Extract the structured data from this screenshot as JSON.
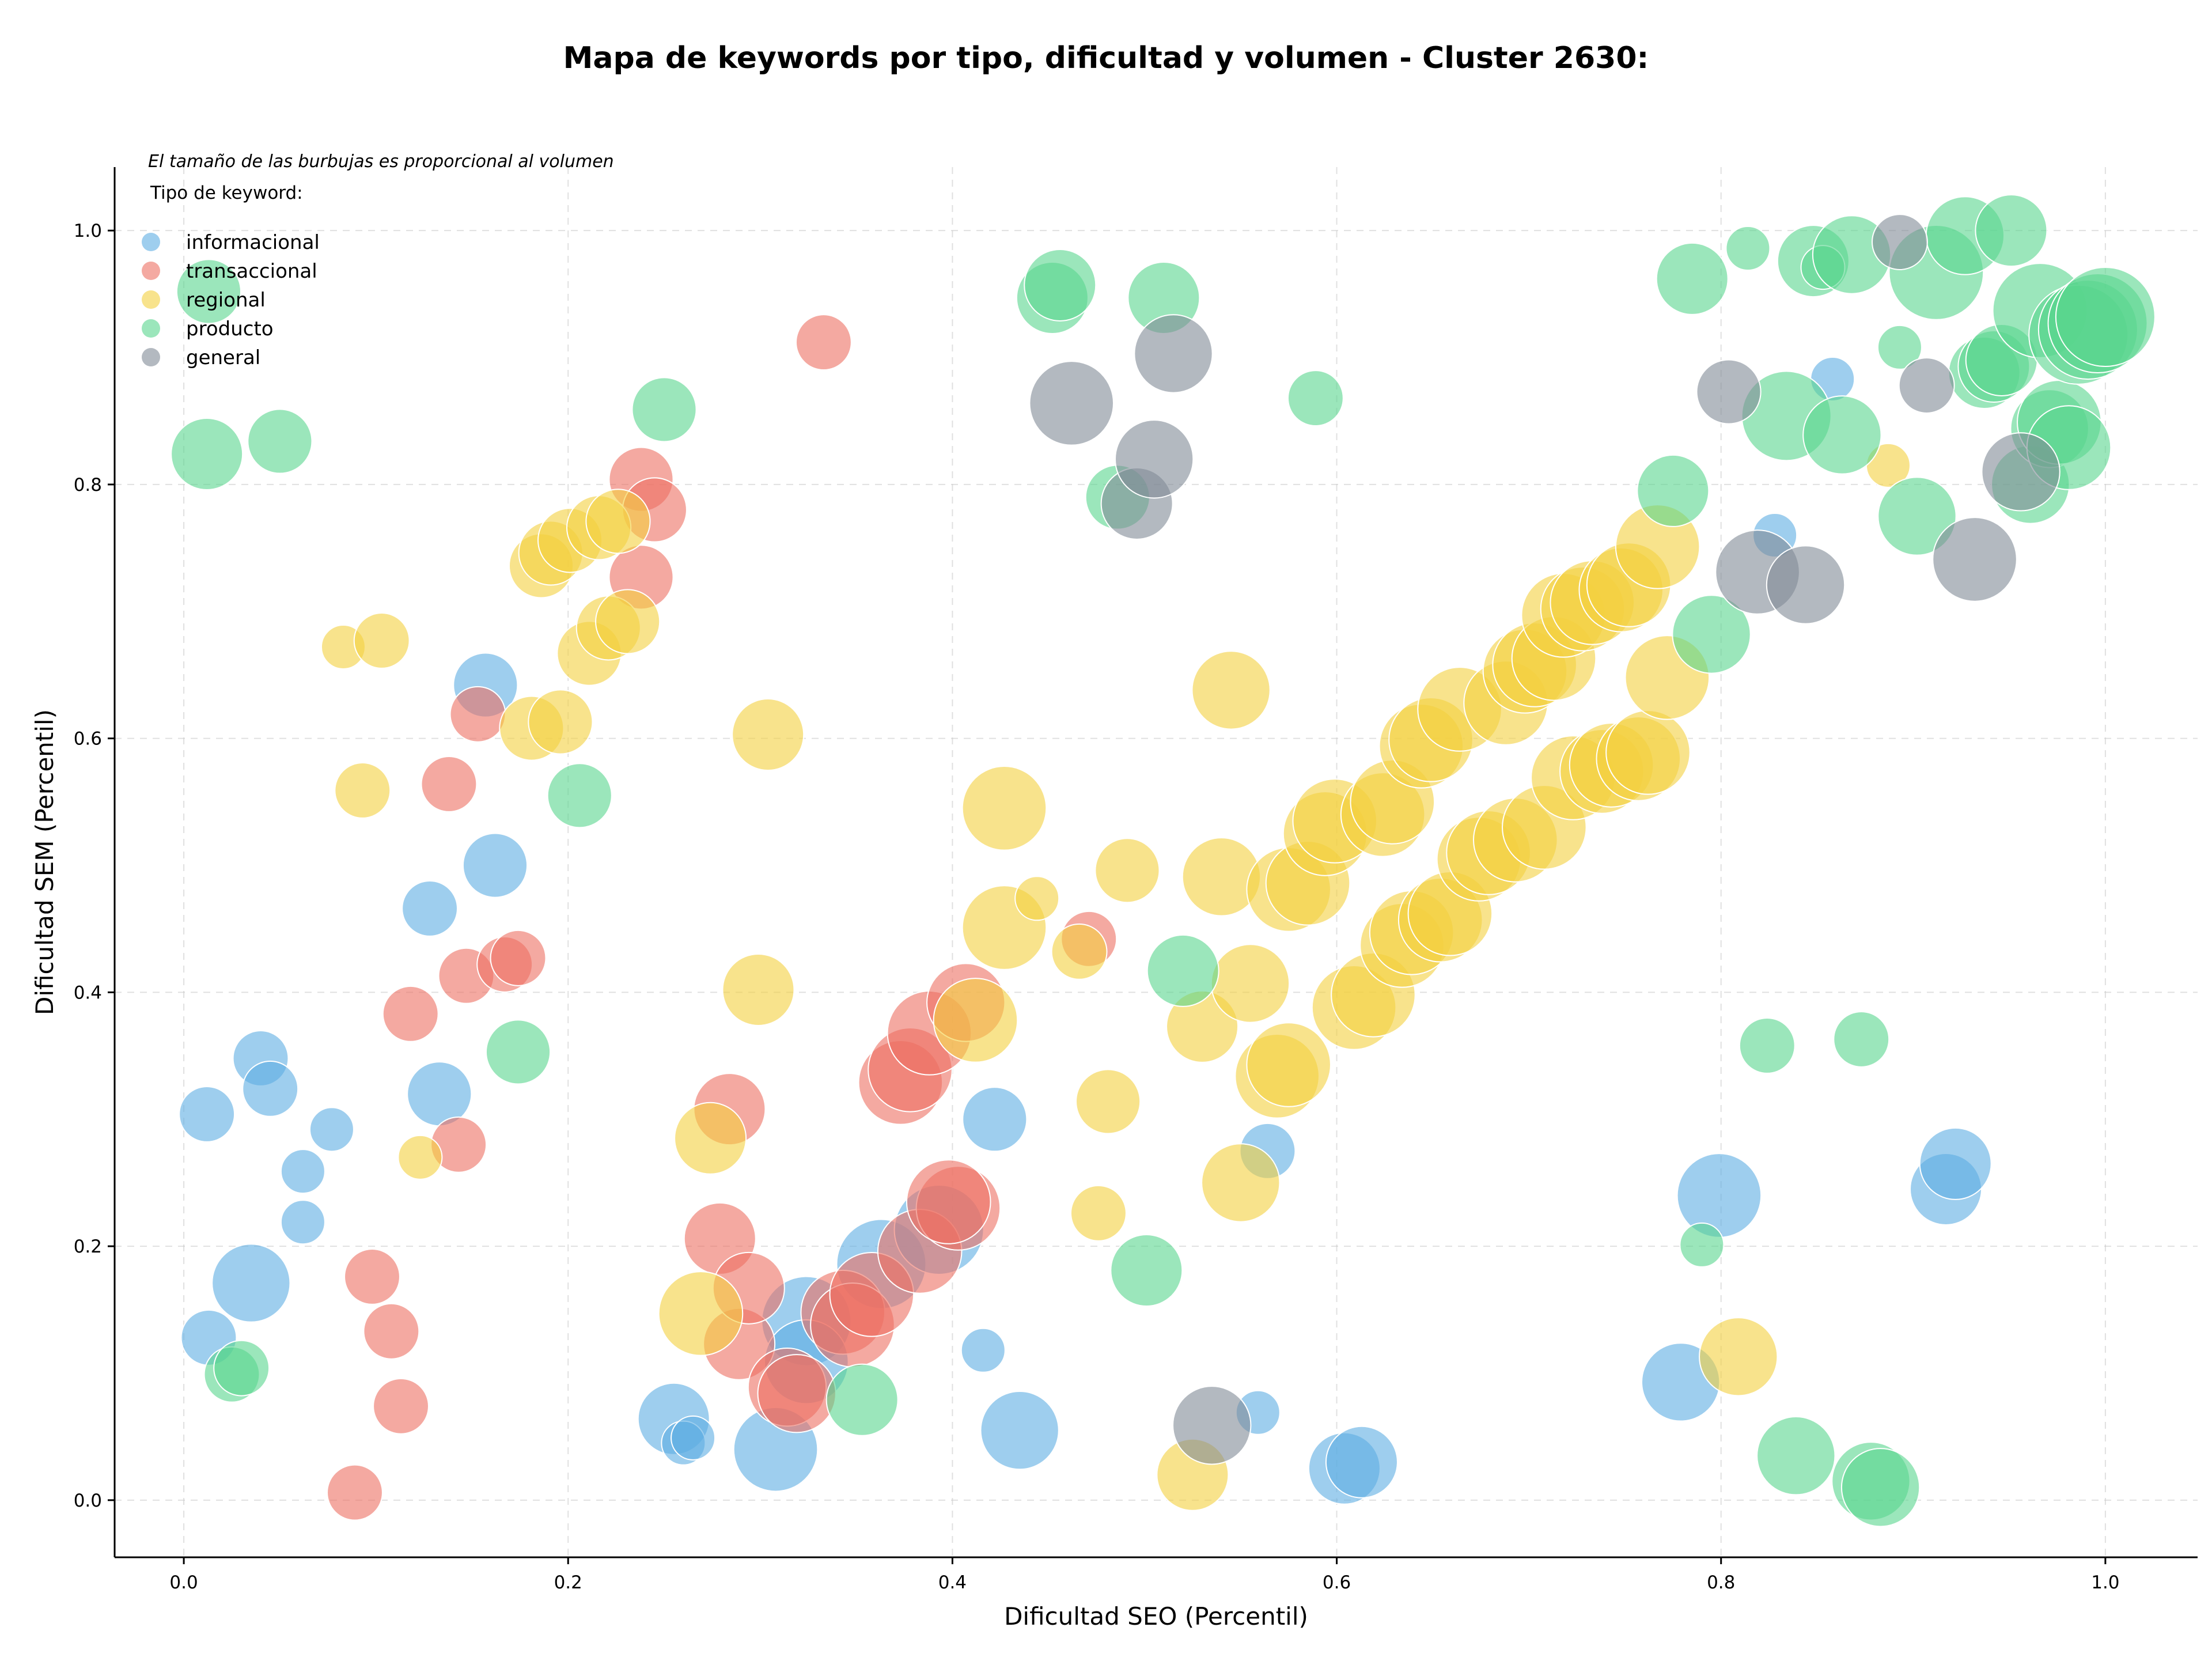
{
  "chart_data": {
    "type": "scatter",
    "title": "Mapa de keywords por tipo, dificultad y volumen - Cluster 2630:",
    "xlabel": "Dificultad SEO (Percentil)",
    "ylabel": "Dificultad SEM (Percentil)",
    "xlim": [
      -0.036,
      1.048
    ],
    "ylim": [
      -0.045,
      1.05
    ],
    "xticks": [
      "0.0",
      "0.2",
      "0.4",
      "0.6",
      "0.8",
      "1.0"
    ],
    "yticks": [
      "0.0",
      "0.2",
      "0.4",
      "0.6",
      "0.8",
      "1.0"
    ],
    "grid": true,
    "note": "El tamaño de las burbujas es proporcional al volumen",
    "legend": {
      "title": "Tipo de keyword:",
      "placement": "top-left"
    },
    "bubble_encoding": "point size ~ search volume (relative, 1-10)",
    "series": [
      {
        "name": "informacional",
        "color": "#5dade2",
        "points": [
          {
            "x": 0.012,
            "y": 0.304,
            "v": 2
          },
          {
            "x": 0.013,
            "y": 0.128,
            "v": 2
          },
          {
            "x": 0.035,
            "y": 0.171,
            "v": 5
          },
          {
            "x": 0.04,
            "y": 0.348,
            "v": 2
          },
          {
            "x": 0.045,
            "y": 0.324,
            "v": 2
          },
          {
            "x": 0.062,
            "y": 0.259,
            "v": 1
          },
          {
            "x": 0.062,
            "y": 0.219,
            "v": 1
          },
          {
            "x": 0.077,
            "y": 0.292,
            "v": 1
          },
          {
            "x": 0.128,
            "y": 0.466,
            "v": 2
          },
          {
            "x": 0.133,
            "y": 0.32,
            "v": 3
          },
          {
            "x": 0.157,
            "y": 0.642,
            "v": 3
          },
          {
            "x": 0.162,
            "y": 0.5,
            "v": 3
          },
          {
            "x": 0.255,
            "y": 0.064,
            "v": 4
          },
          {
            "x": 0.26,
            "y": 0.045,
            "v": 1
          },
          {
            "x": 0.265,
            "y": 0.049,
            "v": 1
          },
          {
            "x": 0.308,
            "y": 0.04,
            "v": 6
          },
          {
            "x": 0.324,
            "y": 0.141,
            "v": 7
          },
          {
            "x": 0.324,
            "y": 0.109,
            "v": 6
          },
          {
            "x": 0.363,
            "y": 0.186,
            "v": 7
          },
          {
            "x": 0.393,
            "y": 0.213,
            "v": 7
          },
          {
            "x": 0.416,
            "y": 0.118,
            "v": 1
          },
          {
            "x": 0.422,
            "y": 0.3,
            "v": 3
          },
          {
            "x": 0.435,
            "y": 0.055,
            "v": 5
          },
          {
            "x": 0.559,
            "y": 0.069,
            "v": 1
          },
          {
            "x": 0.564,
            "y": 0.275,
            "v": 2
          },
          {
            "x": 0.604,
            "y": 0.025,
            "v": 4
          },
          {
            "x": 0.613,
            "y": 0.03,
            "v": 4
          },
          {
            "x": 0.779,
            "y": 0.093,
            "v": 5
          },
          {
            "x": 0.799,
            "y": 0.24,
            "v": 6
          },
          {
            "x": 0.828,
            "y": 0.76,
            "v": 1
          },
          {
            "x": 0.858,
            "y": 0.883,
            "v": 1
          },
          {
            "x": 0.917,
            "y": 0.245,
            "v": 4
          },
          {
            "x": 0.922,
            "y": 0.265,
            "v": 4
          }
        ]
      },
      {
        "name": "transaccional",
        "color": "#ec7063",
        "points": [
          {
            "x": 0.089,
            "y": 0.006,
            "v": 2
          },
          {
            "x": 0.098,
            "y": 0.176,
            "v": 2
          },
          {
            "x": 0.108,
            "y": 0.133,
            "v": 2
          },
          {
            "x": 0.113,
            "y": 0.074,
            "v": 2
          },
          {
            "x": 0.118,
            "y": 0.383,
            "v": 2
          },
          {
            "x": 0.138,
            "y": 0.564,
            "v": 2
          },
          {
            "x": 0.143,
            "y": 0.28,
            "v": 2
          },
          {
            "x": 0.147,
            "y": 0.413,
            "v": 2
          },
          {
            "x": 0.153,
            "y": 0.619,
            "v": 2
          },
          {
            "x": 0.167,
            "y": 0.422,
            "v": 2
          },
          {
            "x": 0.174,
            "y": 0.427,
            "v": 2
          },
          {
            "x": 0.238,
            "y": 0.804,
            "v": 3
          },
          {
            "x": 0.245,
            "y": 0.78,
            "v": 3
          },
          {
            "x": 0.238,
            "y": 0.727,
            "v": 3
          },
          {
            "x": 0.279,
            "y": 0.206,
            "v": 4
          },
          {
            "x": 0.284,
            "y": 0.308,
            "v": 4
          },
          {
            "x": 0.289,
            "y": 0.123,
            "v": 4
          },
          {
            "x": 0.294,
            "y": 0.167,
            "v": 4
          },
          {
            "x": 0.314,
            "y": 0.089,
            "v": 5
          },
          {
            "x": 0.319,
            "y": 0.084,
            "v": 5
          },
          {
            "x": 0.333,
            "y": 0.912,
            "v": 2
          },
          {
            "x": 0.343,
            "y": 0.148,
            "v": 6
          },
          {
            "x": 0.348,
            "y": 0.138,
            "v": 6
          },
          {
            "x": 0.358,
            "y": 0.162,
            "v": 6
          },
          {
            "x": 0.373,
            "y": 0.329,
            "v": 6
          },
          {
            "x": 0.378,
            "y": 0.339,
            "v": 6
          },
          {
            "x": 0.388,
            "y": 0.368,
            "v": 6
          },
          {
            "x": 0.383,
            "y": 0.196,
            "v": 6
          },
          {
            "x": 0.403,
            "y": 0.23,
            "v": 6
          },
          {
            "x": 0.398,
            "y": 0.235,
            "v": 6
          },
          {
            "x": 0.407,
            "y": 0.392,
            "v": 5
          },
          {
            "x": 0.471,
            "y": 0.442,
            "v": 2
          }
        ]
      },
      {
        "name": "regional",
        "color": "#f4d03f",
        "points": [
          {
            "x": 0.083,
            "y": 0.672,
            "v": 1
          },
          {
            "x": 0.093,
            "y": 0.559,
            "v": 2
          },
          {
            "x": 0.103,
            "y": 0.677,
            "v": 2
          },
          {
            "x": 0.123,
            "y": 0.27,
            "v": 1
          },
          {
            "x": 0.181,
            "y": 0.608,
            "v": 3
          },
          {
            "x": 0.186,
            "y": 0.736,
            "v": 3
          },
          {
            "x": 0.191,
            "y": 0.746,
            "v": 3
          },
          {
            "x": 0.196,
            "y": 0.613,
            "v": 3
          },
          {
            "x": 0.201,
            "y": 0.756,
            "v": 3
          },
          {
            "x": 0.211,
            "y": 0.667,
            "v": 3
          },
          {
            "x": 0.216,
            "y": 0.766,
            "v": 3
          },
          {
            "x": 0.221,
            "y": 0.687,
            "v": 3
          },
          {
            "x": 0.226,
            "y": 0.771,
            "v": 3
          },
          {
            "x": 0.231,
            "y": 0.692,
            "v": 3
          },
          {
            "x": 0.269,
            "y": 0.147,
            "v": 6
          },
          {
            "x": 0.274,
            "y": 0.285,
            "v": 4
          },
          {
            "x": 0.299,
            "y": 0.402,
            "v": 4
          },
          {
            "x": 0.304,
            "y": 0.603,
            "v": 4
          },
          {
            "x": 0.412,
            "y": 0.378,
            "v": 6
          },
          {
            "x": 0.427,
            "y": 0.451,
            "v": 6
          },
          {
            "x": 0.427,
            "y": 0.545,
            "v": 6
          },
          {
            "x": 0.444,
            "y": 0.474,
            "v": 1
          },
          {
            "x": 0.466,
            "y": 0.432,
            "v": 2
          },
          {
            "x": 0.476,
            "y": 0.226,
            "v": 2
          },
          {
            "x": 0.481,
            "y": 0.314,
            "v": 3
          },
          {
            "x": 0.491,
            "y": 0.496,
            "v": 3
          },
          {
            "x": 0.525,
            "y": 0.02,
            "v": 4
          },
          {
            "x": 0.53,
            "y": 0.373,
            "v": 4
          },
          {
            "x": 0.54,
            "y": 0.491,
            "v": 5
          },
          {
            "x": 0.545,
            "y": 0.638,
            "v": 5
          },
          {
            "x": 0.55,
            "y": 0.25,
            "v": 5
          },
          {
            "x": 0.555,
            "y": 0.407,
            "v": 5
          },
          {
            "x": 0.569,
            "y": 0.334,
            "v": 6
          },
          {
            "x": 0.575,
            "y": 0.343,
            "v": 6
          },
          {
            "x": 0.575,
            "y": 0.481,
            "v": 6
          },
          {
            "x": 0.585,
            "y": 0.486,
            "v": 6
          },
          {
            "x": 0.594,
            "y": 0.525,
            "v": 6
          },
          {
            "x": 0.599,
            "y": 0.535,
            "v": 6
          },
          {
            "x": 0.609,
            "y": 0.388,
            "v": 6
          },
          {
            "x": 0.619,
            "y": 0.398,
            "v": 6
          },
          {
            "x": 0.624,
            "y": 0.54,
            "v": 6
          },
          {
            "x": 0.629,
            "y": 0.55,
            "v": 6
          },
          {
            "x": 0.634,
            "y": 0.437,
            "v": 6
          },
          {
            "x": 0.639,
            "y": 0.447,
            "v": 6
          },
          {
            "x": 0.644,
            "y": 0.594,
            "v": 6
          },
          {
            "x": 0.649,
            "y": 0.599,
            "v": 6
          },
          {
            "x": 0.654,
            "y": 0.457,
            "v": 6
          },
          {
            "x": 0.659,
            "y": 0.462,
            "v": 6
          },
          {
            "x": 0.664,
            "y": 0.623,
            "v": 6
          },
          {
            "x": 0.674,
            "y": 0.505,
            "v": 6
          },
          {
            "x": 0.679,
            "y": 0.51,
            "v": 6
          },
          {
            "x": 0.688,
            "y": 0.628,
            "v": 6
          },
          {
            "x": 0.693,
            "y": 0.52,
            "v": 6
          },
          {
            "x": 0.698,
            "y": 0.653,
            "v": 6
          },
          {
            "x": 0.703,
            "y": 0.658,
            "v": 6
          },
          {
            "x": 0.708,
            "y": 0.53,
            "v": 6
          },
          {
            "x": 0.713,
            "y": 0.663,
            "v": 6
          },
          {
            "x": 0.718,
            "y": 0.697,
            "v": 6
          },
          {
            "x": 0.723,
            "y": 0.569,
            "v": 6
          },
          {
            "x": 0.728,
            "y": 0.702,
            "v": 6
          },
          {
            "x": 0.733,
            "y": 0.707,
            "v": 6
          },
          {
            "x": 0.738,
            "y": 0.574,
            "v": 6
          },
          {
            "x": 0.743,
            "y": 0.579,
            "v": 6
          },
          {
            "x": 0.748,
            "y": 0.717,
            "v": 6
          },
          {
            "x": 0.752,
            "y": 0.721,
            "v": 6
          },
          {
            "x": 0.757,
            "y": 0.584,
            "v": 6
          },
          {
            "x": 0.762,
            "y": 0.589,
            "v": 6
          },
          {
            "x": 0.767,
            "y": 0.751,
            "v": 6
          },
          {
            "x": 0.772,
            "y": 0.648,
            "v": 6
          },
          {
            "x": 0.809,
            "y": 0.113,
            "v": 5
          },
          {
            "x": 0.887,
            "y": 0.815,
            "v": 1
          }
        ]
      },
      {
        "name": "producto",
        "color": "#58d68d",
        "points": [
          {
            "x": 0.012,
            "y": 0.824,
            "v": 4
          },
          {
            "x": 0.013,
            "y": 0.952,
            "v": 3
          },
          {
            "x": 0.025,
            "y": 0.099,
            "v": 2
          },
          {
            "x": 0.03,
            "y": 0.104,
            "v": 2
          },
          {
            "x": 0.05,
            "y": 0.834,
            "v": 3
          },
          {
            "x": 0.174,
            "y": 0.353,
            "v": 3
          },
          {
            "x": 0.206,
            "y": 0.555,
            "v": 3
          },
          {
            "x": 0.25,
            "y": 0.859,
            "v": 3
          },
          {
            "x": 0.353,
            "y": 0.079,
            "v": 4
          },
          {
            "x": 0.452,
            "y": 0.947,
            "v": 4
          },
          {
            "x": 0.456,
            "y": 0.957,
            "v": 4
          },
          {
            "x": 0.486,
            "y": 0.79,
            "v": 3
          },
          {
            "x": 0.501,
            "y": 0.181,
            "v": 4
          },
          {
            "x": 0.51,
            "y": 0.947,
            "v": 4
          },
          {
            "x": 0.52,
            "y": 0.417,
            "v": 4
          },
          {
            "x": 0.589,
            "y": 0.868,
            "v": 2
          },
          {
            "x": 0.775,
            "y": 0.795,
            "v": 4
          },
          {
            "x": 0.785,
            "y": 0.962,
            "v": 4
          },
          {
            "x": 0.79,
            "y": 0.201,
            "v": 1
          },
          {
            "x": 0.795,
            "y": 0.682,
            "v": 5
          },
          {
            "x": 0.814,
            "y": 0.986,
            "v": 1
          },
          {
            "x": 0.824,
            "y": 0.358,
            "v": 2
          },
          {
            "x": 0.834,
            "y": 0.854,
            "v": 7
          },
          {
            "x": 0.839,
            "y": 0.035,
            "v": 5
          },
          {
            "x": 0.848,
            "y": 0.976,
            "v": 4
          },
          {
            "x": 0.853,
            "y": 0.971,
            "v": 1
          },
          {
            "x": 0.863,
            "y": 0.839,
            "v": 5
          },
          {
            "x": 0.868,
            "y": 0.981,
            "v": 5
          },
          {
            "x": 0.873,
            "y": 0.363,
            "v": 2
          },
          {
            "x": 0.878,
            "y": 0.015,
            "v": 5
          },
          {
            "x": 0.883,
            "y": 0.01,
            "v": 5
          },
          {
            "x": 0.893,
            "y": 0.908,
            "v": 1
          },
          {
            "x": 0.902,
            "y": 0.775,
            "v": 5
          },
          {
            "x": 0.912,
            "y": 0.967,
            "v": 8
          },
          {
            "x": 0.927,
            "y": 0.996,
            "v": 5
          },
          {
            "x": 0.937,
            "y": 0.888,
            "v": 4
          },
          {
            "x": 0.942,
            "y": 0.893,
            "v": 4
          },
          {
            "x": 0.946,
            "y": 0.898,
            "v": 4
          },
          {
            "x": 0.951,
            "y": 1.0,
            "v": 4
          },
          {
            "x": 0.961,
            "y": 0.8,
            "v": 5
          },
          {
            "x": 0.966,
            "y": 0.937,
            "v": 8
          },
          {
            "x": 0.971,
            "y": 0.844,
            "v": 5
          },
          {
            "x": 0.976,
            "y": 0.849,
            "v": 6
          },
          {
            "x": 0.981,
            "y": 0.829,
            "v": 6
          },
          {
            "x": 0.986,
            "y": 0.918,
            "v": 9
          },
          {
            "x": 0.991,
            "y": 0.922,
            "v": 9
          },
          {
            "x": 0.996,
            "y": 0.927,
            "v": 9
          },
          {
            "x": 1.0,
            "y": 0.932,
            "v": 9
          }
        ]
      },
      {
        "name": "general",
        "color": "#808b96",
        "points": [
          {
            "x": 0.462,
            "y": 0.864,
            "v": 6
          },
          {
            "x": 0.496,
            "y": 0.785,
            "v": 4
          },
          {
            "x": 0.505,
            "y": 0.82,
            "v": 5
          },
          {
            "x": 0.515,
            "y": 0.903,
            "v": 5
          },
          {
            "x": 0.535,
            "y": 0.059,
            "v": 5
          },
          {
            "x": 0.804,
            "y": 0.873,
            "v": 3
          },
          {
            "x": 0.819,
            "y": 0.731,
            "v": 6
          },
          {
            "x": 0.844,
            "y": 0.721,
            "v": 5
          },
          {
            "x": 0.893,
            "y": 0.991,
            "v": 2
          },
          {
            "x": 0.907,
            "y": 0.878,
            "v": 2
          },
          {
            "x": 0.932,
            "y": 0.741,
            "v": 6
          },
          {
            "x": 0.956,
            "y": 0.81,
            "v": 5
          }
        ]
      }
    ]
  }
}
